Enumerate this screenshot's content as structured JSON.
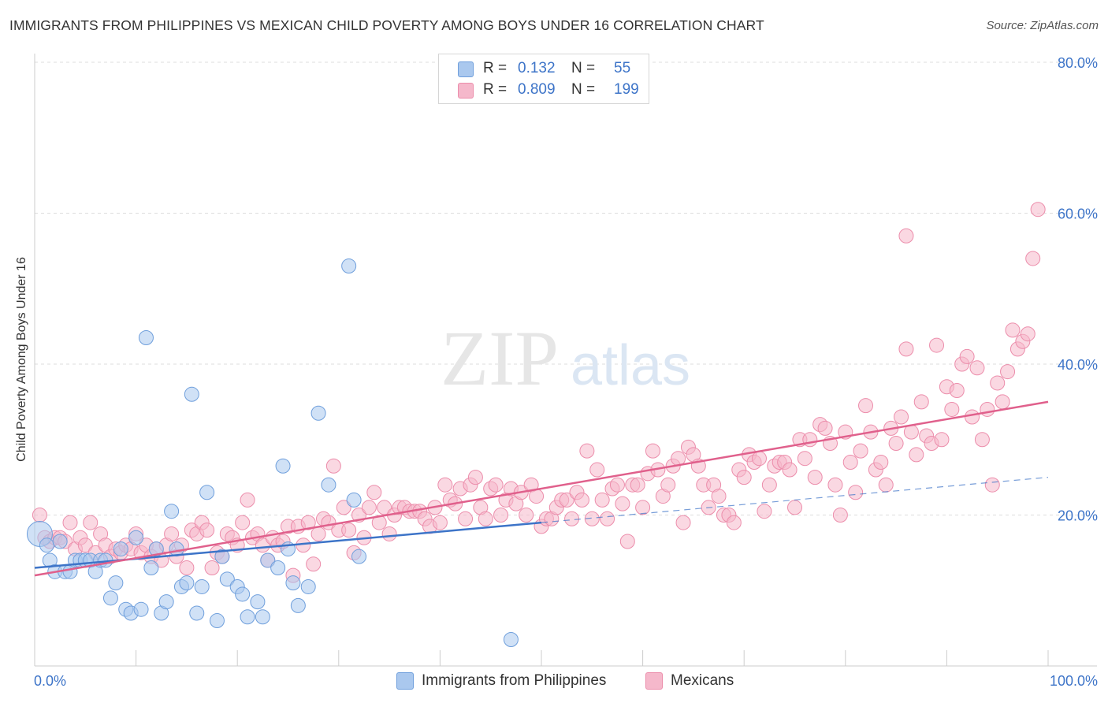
{
  "title": "IMMIGRANTS FROM PHILIPPINES VS MEXICAN CHILD POVERTY AMONG BOYS UNDER 16 CORRELATION CHART",
  "source": "Source: ZipAtlas.com",
  "watermark": {
    "zip": "ZIP",
    "atlas": "atlas"
  },
  "legend": {
    "rows": [
      {
        "r_label": "R =",
        "r_value": "0.132",
        "n_label": "N =",
        "n_value": "55"
      },
      {
        "r_label": "R =",
        "r_value": "0.809",
        "n_label": "N =",
        "n_value": "199"
      }
    ]
  },
  "bottom_legend": [
    "Immigrants from Philippines",
    "Mexicans"
  ],
  "colors": {
    "blue_fill": "#aac8ee",
    "blue_stroke": "#6f9fdc",
    "blue_line": "#3d74c8",
    "pink_fill": "#f5b8cb",
    "pink_stroke": "#ec8dab",
    "pink_line": "#e0608c",
    "tick_label": "#3d74c8",
    "grid": "#dddddd"
  },
  "chart_data": {
    "type": "scatter",
    "title": "IMMIGRANTS FROM PHILIPPINES VS MEXICAN CHILD POVERTY AMONG BOYS UNDER 16 CORRELATION CHART",
    "xlabel": "",
    "ylabel": "Child Poverty Among Boys Under 16",
    "xlim": [
      0,
      100
    ],
    "ylim": [
      0,
      80
    ],
    "x_tick_labels": [
      "0.0%",
      "100.0%"
    ],
    "y_ticks": [
      20,
      40,
      60,
      80
    ],
    "y_tick_labels": [
      "20.0%",
      "40.0%",
      "60.0%",
      "80.0%"
    ],
    "grid": true,
    "legend_position": "top-center",
    "series": [
      {
        "name": "Immigrants from Philippines",
        "r": 0.132,
        "n": 55,
        "trend": {
          "x0": 0,
          "y0": 13.0,
          "x1": 50,
          "y1": 19.0,
          "dashed_to_x": 100,
          "dashed_to_y": 25.0
        },
        "points": [
          [
            0.5,
            17.5
          ],
          [
            1.2,
            16
          ],
          [
            1.5,
            14
          ],
          [
            2,
            12.5
          ],
          [
            2.5,
            16.5
          ],
          [
            3,
            12.5
          ],
          [
            3.5,
            12.5
          ],
          [
            4,
            14
          ],
          [
            4.5,
            14
          ],
          [
            5,
            14
          ],
          [
            5.5,
            14
          ],
          [
            6,
            12.5
          ],
          [
            6.5,
            14
          ],
          [
            7,
            14
          ],
          [
            7.5,
            9
          ],
          [
            8,
            11
          ],
          [
            8.5,
            15.5
          ],
          [
            9,
            7.5
          ],
          [
            9.5,
            7
          ],
          [
            10,
            17
          ],
          [
            10.5,
            7.5
          ],
          [
            11,
            43.5
          ],
          [
            11.5,
            13
          ],
          [
            12,
            15.5
          ],
          [
            12.5,
            7
          ],
          [
            13,
            8.5
          ],
          [
            13.5,
            20.5
          ],
          [
            14,
            15.5
          ],
          [
            14.5,
            10.5
          ],
          [
            15,
            11
          ],
          [
            15.5,
            36
          ],
          [
            16,
            7
          ],
          [
            16.5,
            10.5
          ],
          [
            17,
            23
          ],
          [
            18,
            6
          ],
          [
            18.5,
            14.5
          ],
          [
            19,
            11.5
          ],
          [
            20,
            10.5
          ],
          [
            20.5,
            9.5
          ],
          [
            21,
            6.5
          ],
          [
            22,
            8.5
          ],
          [
            22.5,
            6.5
          ],
          [
            23,
            14
          ],
          [
            24,
            13
          ],
          [
            24.5,
            26.5
          ],
          [
            25,
            15.5
          ],
          [
            25.5,
            11
          ],
          [
            26,
            8
          ],
          [
            27,
            10.5
          ],
          [
            28,
            33.5
          ],
          [
            29,
            24
          ],
          [
            31,
            53
          ],
          [
            31.5,
            22
          ],
          [
            32,
            14.5
          ],
          [
            47,
            3.5
          ]
        ]
      },
      {
        "name": "Mexicans",
        "r": 0.809,
        "n": 199,
        "trend": {
          "x0": 0,
          "y0": 12.0,
          "x1": 100,
          "y1": 35.0
        },
        "points": [
          [
            0.5,
            20
          ],
          [
            1,
            17
          ],
          [
            1.5,
            16.5
          ],
          [
            2,
            17
          ],
          [
            2.5,
            17
          ],
          [
            3,
            16.5
          ],
          [
            3.5,
            19
          ],
          [
            4,
            15.5
          ],
          [
            4.5,
            17
          ],
          [
            5,
            16
          ],
          [
            5.5,
            19
          ],
          [
            6,
            15
          ],
          [
            6.5,
            17.5
          ],
          [
            7,
            16
          ],
          [
            7.5,
            14.5
          ],
          [
            8,
            15.5
          ],
          [
            8.5,
            15
          ],
          [
            9,
            16
          ],
          [
            9.5,
            15.5
          ],
          [
            10,
            17.5
          ],
          [
            10.5,
            15
          ],
          [
            11,
            16
          ],
          [
            11.5,
            14.5
          ],
          [
            12,
            15.5
          ],
          [
            12.5,
            14
          ],
          [
            13,
            16
          ],
          [
            13.5,
            17.5
          ],
          [
            14,
            14.5
          ],
          [
            14.5,
            16
          ],
          [
            15,
            13
          ],
          [
            15.5,
            18
          ],
          [
            16,
            17.5
          ],
          [
            16.5,
            19
          ],
          [
            17,
            18
          ],
          [
            17.5,
            13
          ],
          [
            18,
            15
          ],
          [
            18.5,
            14.5
          ],
          [
            19,
            17.5
          ],
          [
            19.5,
            17
          ],
          [
            20,
            16
          ],
          [
            20.5,
            19
          ],
          [
            21,
            22
          ],
          [
            21.5,
            17
          ],
          [
            22,
            17.5
          ],
          [
            22.5,
            16
          ],
          [
            23,
            14
          ],
          [
            23.5,
            17
          ],
          [
            24,
            16
          ],
          [
            24.5,
            16.5
          ],
          [
            25,
            18.5
          ],
          [
            25.5,
            12
          ],
          [
            26,
            18.5
          ],
          [
            26.5,
            16
          ],
          [
            27,
            19
          ],
          [
            27.5,
            13.5
          ],
          [
            28,
            17.5
          ],
          [
            28.5,
            19.5
          ],
          [
            29,
            19
          ],
          [
            29.5,
            26.5
          ],
          [
            30,
            18
          ],
          [
            30.5,
            21
          ],
          [
            31,
            18
          ],
          [
            31.5,
            15
          ],
          [
            32,
            20
          ],
          [
            32.5,
            17
          ],
          [
            33,
            21
          ],
          [
            33.5,
            23
          ],
          [
            34,
            19
          ],
          [
            34.5,
            21
          ],
          [
            35,
            17.5
          ],
          [
            35.5,
            20
          ],
          [
            36,
            21
          ],
          [
            36.5,
            21
          ],
          [
            37,
            20.5
          ],
          [
            37.5,
            20.5
          ],
          [
            38,
            20.5
          ],
          [
            38.5,
            19.5
          ],
          [
            39,
            18.5
          ],
          [
            39.5,
            21
          ],
          [
            40,
            19
          ],
          [
            40.5,
            24
          ],
          [
            41,
            22
          ],
          [
            41.5,
            21.5
          ],
          [
            42,
            23.5
          ],
          [
            42.5,
            19.5
          ],
          [
            43,
            24
          ],
          [
            43.5,
            25
          ],
          [
            44,
            21
          ],
          [
            44.5,
            19.5
          ],
          [
            45,
            23.5
          ],
          [
            45.5,
            24
          ],
          [
            46,
            20
          ],
          [
            46.5,
            22
          ],
          [
            47,
            23.5
          ],
          [
            47.5,
            21.5
          ],
          [
            48,
            23
          ],
          [
            48.5,
            20
          ],
          [
            49,
            24
          ],
          [
            49.5,
            22.5
          ],
          [
            50,
            18.5
          ],
          [
            50.5,
            19.5
          ],
          [
            51,
            19.5
          ],
          [
            51.5,
            21
          ],
          [
            52,
            22
          ],
          [
            52.5,
            22
          ],
          [
            53,
            19.5
          ],
          [
            53.5,
            23
          ],
          [
            54,
            22
          ],
          [
            54.5,
            28.5
          ],
          [
            55,
            19.5
          ],
          [
            55.5,
            26
          ],
          [
            56,
            22
          ],
          [
            56.5,
            19.5
          ],
          [
            57,
            23.5
          ],
          [
            57.5,
            24
          ],
          [
            58,
            21.5
          ],
          [
            58.5,
            16.5
          ],
          [
            59,
            24
          ],
          [
            59.5,
            24
          ],
          [
            60,
            21
          ],
          [
            60.5,
            25.5
          ],
          [
            61,
            28.5
          ],
          [
            61.5,
            26
          ],
          [
            62,
            22.5
          ],
          [
            62.5,
            24
          ],
          [
            63,
            26.5
          ],
          [
            63.5,
            27.5
          ],
          [
            64,
            19
          ],
          [
            64.5,
            29
          ],
          [
            65,
            28
          ],
          [
            65.5,
            26.5
          ],
          [
            66,
            24
          ],
          [
            66.5,
            21
          ],
          [
            67,
            24
          ],
          [
            67.5,
            22.5
          ],
          [
            68,
            20
          ],
          [
            68.5,
            20
          ],
          [
            69,
            19
          ],
          [
            69.5,
            26
          ],
          [
            70,
            25
          ],
          [
            70.5,
            28
          ],
          [
            71,
            27
          ],
          [
            71.5,
            27.5
          ],
          [
            72,
            20.5
          ],
          [
            72.5,
            24
          ],
          [
            73,
            26.5
          ],
          [
            73.5,
            27
          ],
          [
            74,
            27
          ],
          [
            74.5,
            26
          ],
          [
            75,
            21
          ],
          [
            75.5,
            30
          ],
          [
            76,
            27.5
          ],
          [
            76.5,
            30
          ],
          [
            77,
            25
          ],
          [
            77.5,
            32
          ],
          [
            78,
            31.5
          ],
          [
            78.5,
            29.5
          ],
          [
            79,
            24
          ],
          [
            79.5,
            20
          ],
          [
            80,
            31
          ],
          [
            80.5,
            27
          ],
          [
            81,
            23
          ],
          [
            81.5,
            28.5
          ],
          [
            82,
            34.5
          ],
          [
            82.5,
            31
          ],
          [
            83,
            26
          ],
          [
            83.5,
            27
          ],
          [
            84,
            24
          ],
          [
            84.5,
            31.5
          ],
          [
            85,
            29.5
          ],
          [
            85.5,
            33
          ],
          [
            86,
            42
          ],
          [
            86,
            57
          ],
          [
            86.5,
            31
          ],
          [
            87,
            28
          ],
          [
            87.5,
            35
          ],
          [
            88,
            30.5
          ],
          [
            88.5,
            29.5
          ],
          [
            89,
            42.5
          ],
          [
            89.5,
            30
          ],
          [
            90,
            37
          ],
          [
            90.5,
            34
          ],
          [
            91,
            36.5
          ],
          [
            91.5,
            40
          ],
          [
            92,
            41
          ],
          [
            92.5,
            33
          ],
          [
            93,
            39.5
          ],
          [
            93.5,
            30
          ],
          [
            94,
            34
          ],
          [
            94.5,
            24
          ],
          [
            95,
            37.5
          ],
          [
            95.5,
            35
          ],
          [
            96,
            39
          ],
          [
            96.5,
            44.5
          ],
          [
            97,
            42
          ],
          [
            97.5,
            43
          ],
          [
            98,
            44
          ],
          [
            98.5,
            54
          ],
          [
            99,
            60.5
          ]
        ]
      }
    ]
  }
}
